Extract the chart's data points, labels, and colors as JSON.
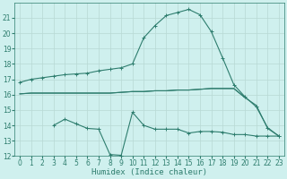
{
  "color": "#2e7d6e",
  "bg_color": "#cff0ee",
  "grid_color": "#b8d8d4",
  "ylim": [
    12,
    22
  ],
  "xlim": [
    -0.5,
    23.5
  ],
  "yticks": [
    12,
    13,
    14,
    15,
    16,
    17,
    18,
    19,
    20,
    21
  ],
  "xticks": [
    0,
    1,
    2,
    3,
    4,
    5,
    6,
    7,
    8,
    9,
    10,
    11,
    12,
    13,
    14,
    15,
    16,
    17,
    18,
    19,
    20,
    21,
    22,
    23
  ],
  "xlabel": "Humidex (Indice chaleur)",
  "label_fontsize": 6.5,
  "tick_fontsize": 5.5,
  "curve1_x": [
    0,
    1,
    2,
    3,
    4,
    5,
    6,
    7,
    8,
    9,
    10,
    11,
    12,
    13,
    14,
    15,
    16,
    17,
    18,
    19,
    20,
    21,
    22,
    23
  ],
  "curve1_y": [
    16.8,
    17.0,
    17.1,
    17.2,
    17.3,
    17.35,
    17.4,
    17.55,
    17.65,
    17.75,
    18.0,
    19.7,
    20.5,
    21.15,
    21.35,
    21.55,
    21.2,
    20.1,
    18.4,
    16.65,
    15.85,
    15.2,
    13.85,
    13.3
  ],
  "curve2_x": [
    0,
    1,
    2,
    3,
    4,
    5,
    6,
    7,
    8,
    9,
    10,
    11,
    12,
    13,
    14,
    15,
    16,
    17,
    18,
    19,
    20
  ],
  "curve2_y": [
    16.05,
    16.1,
    16.1,
    16.1,
    16.1,
    16.1,
    16.1,
    16.1,
    16.1,
    16.15,
    16.2,
    16.2,
    16.25,
    16.25,
    16.3,
    16.3,
    16.35,
    16.4,
    16.4,
    16.4,
    15.8
  ],
  "curve3_x": [
    0,
    1,
    2,
    3,
    4,
    5,
    6,
    7,
    8,
    9,
    10,
    11,
    12,
    13,
    14,
    15,
    16,
    17,
    18,
    19,
    20,
    21,
    22,
    23
  ],
  "curve3_y": [
    16.05,
    16.1,
    16.1,
    16.1,
    16.1,
    16.1,
    16.1,
    16.1,
    16.1,
    16.15,
    16.2,
    16.2,
    16.25,
    16.25,
    16.3,
    16.3,
    16.35,
    16.4,
    16.4,
    16.4,
    15.8,
    15.3,
    13.8,
    13.3
  ],
  "curve4a_x": [
    3,
    4,
    5,
    6,
    7,
    8,
    9
  ],
  "curve4a_y": [
    14.0,
    14.4,
    14.1,
    13.8,
    13.75,
    12.1,
    12.05
  ],
  "curve4b_x": [
    9,
    10,
    11,
    12,
    13,
    14,
    15,
    16,
    17,
    18,
    19,
    20,
    21,
    22,
    23
  ],
  "curve4b_y": [
    12.05,
    14.85,
    14.0,
    13.75,
    13.75,
    13.75,
    13.5,
    13.6,
    13.6,
    13.55,
    13.4,
    13.4,
    13.3,
    13.3,
    13.3
  ]
}
